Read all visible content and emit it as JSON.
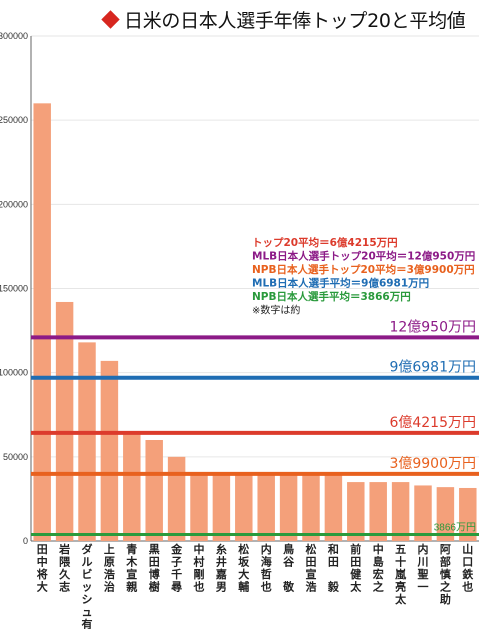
{
  "chart_data": {
    "type": "bar",
    "title": "日米の日本人選手年俸トップ20と平均値",
    "ylim": [
      0,
      300000
    ],
    "yticks": [
      0,
      50000,
      100000,
      150000,
      200000,
      250000,
      300000
    ],
    "bar_color": "#f4a07a",
    "categories": [
      "田中将大",
      "岩隈久志",
      "ダルビッシュ有",
      "上原浩治",
      "青木宣親",
      "黒田博樹",
      "金子千尋",
      "中村剛也",
      "糸井嘉男",
      "松坂大輔",
      "内海哲也",
      "鳥谷　敬",
      "松田宣浩",
      "和田　毅",
      "前田健太",
      "中島宏之",
      "五十嵐亮太",
      "内川聖一",
      "阿部慎之助",
      "山口鉄也"
    ],
    "values": [
      260000,
      142000,
      118000,
      107000,
      64000,
      60000,
      50000,
      40000,
      40000,
      40000,
      40000,
      40000,
      40000,
      40000,
      35000,
      35000,
      35000,
      33000,
      32000,
      31500
    ],
    "reference_lines": [
      {
        "value": 120950,
        "label": "12億950万円",
        "color": "#8c1a87"
      },
      {
        "value": 96981,
        "label": "9億6981万円",
        "color": "#1f6db3"
      },
      {
        "value": 64215,
        "label": "6億4215万円",
        "color": "#dc3b2c"
      },
      {
        "value": 39900,
        "label": "3億9900万円",
        "color": "#e8611e"
      },
      {
        "value": 3866,
        "label": "3866万円",
        "color": "#2a9a3c"
      }
    ],
    "legend_notes": [
      {
        "text": "トップ20平均＝6億4215万円",
        "color": "#dc3b2c"
      },
      {
        "text": "MLB日本人選手トップ20平均＝12億950万円",
        "color": "#8c1a87"
      },
      {
        "text": "NPB日本人選手トップ20平均＝3億9900万円",
        "color": "#e8611e"
      },
      {
        "text": "MLB日本人選手平均＝9億6981万円",
        "color": "#1f6db3"
      },
      {
        "text": "NPB日本人選手平均＝3866万円",
        "color": "#2a9a3c"
      },
      {
        "text": "※数字は約",
        "color": "#222222"
      }
    ]
  }
}
